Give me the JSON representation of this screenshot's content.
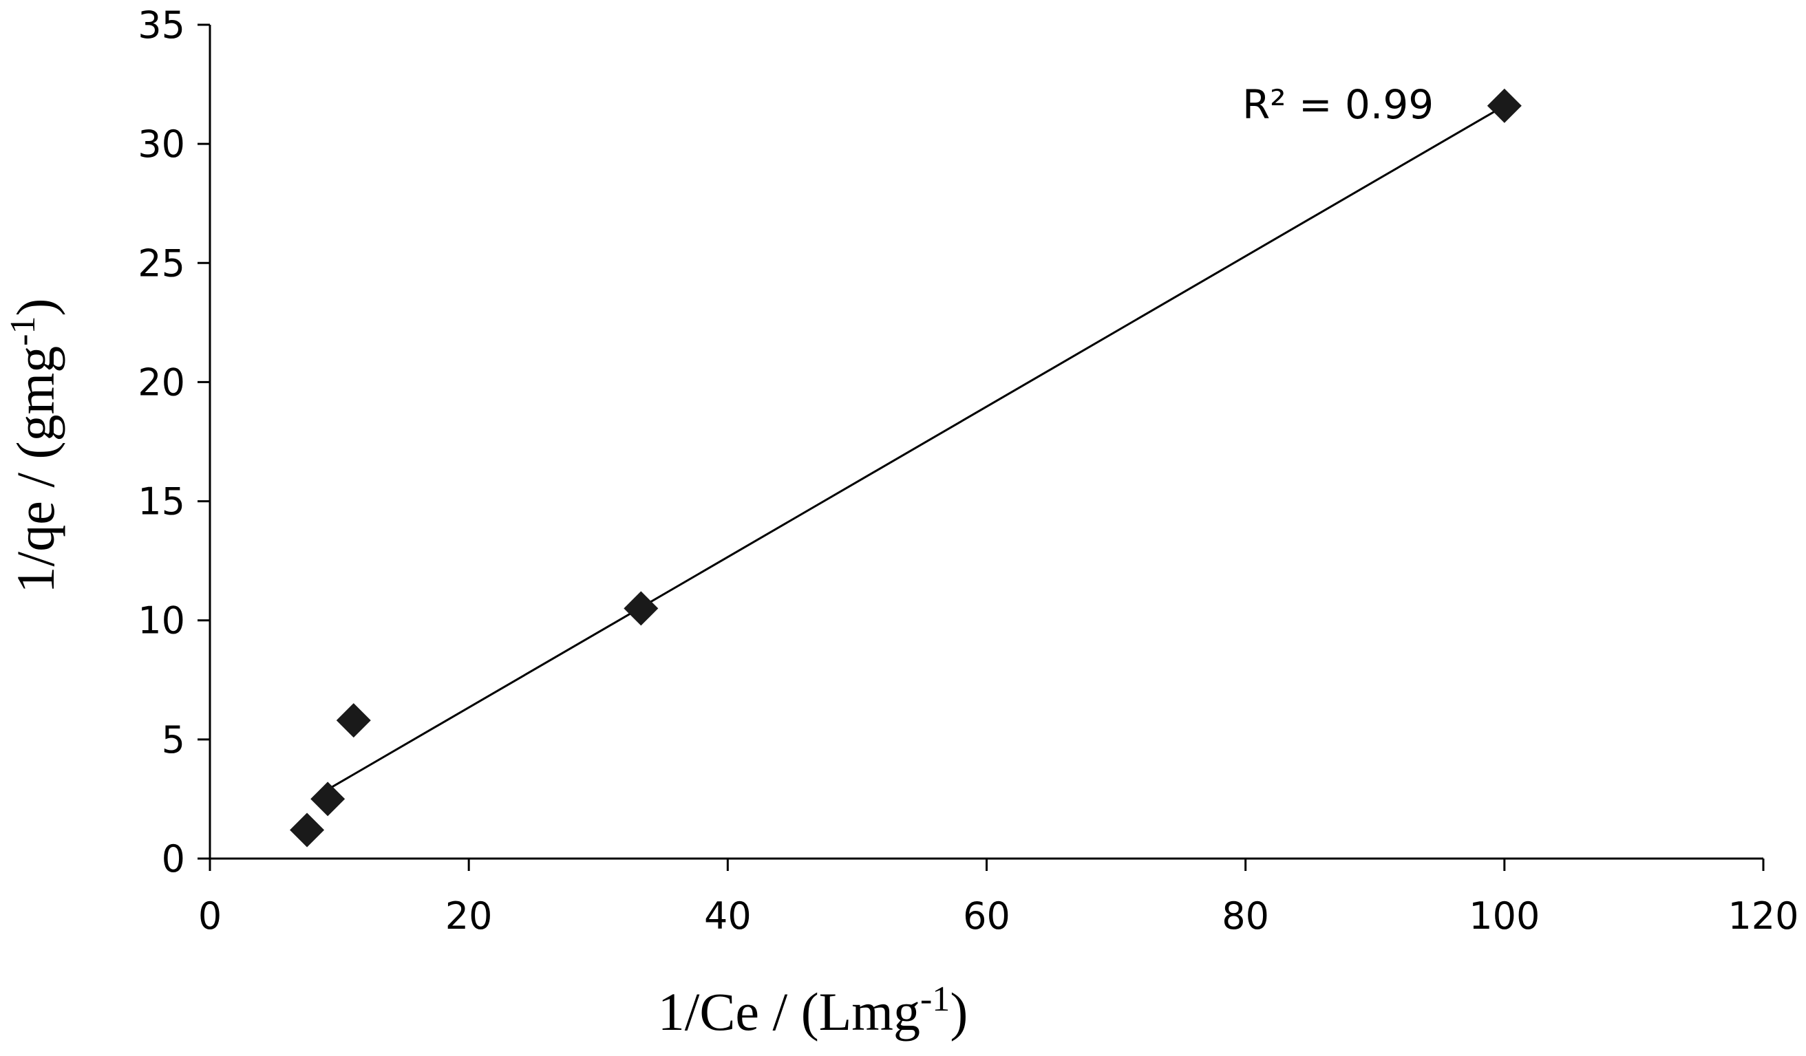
{
  "chart_data": {
    "type": "scatter",
    "title": "",
    "xlabel": {
      "main": "1/Ce / (Lmg",
      "sup": "-1",
      "close": ")"
    },
    "ylabel": {
      "main": "1/qe / (gmg",
      "sup": "-1",
      "close": ")"
    },
    "xlim": [
      0,
      120
    ],
    "ylim": [
      0,
      35
    ],
    "xticks": [
      0,
      20,
      40,
      60,
      80,
      100,
      120
    ],
    "yticks": [
      0,
      5,
      10,
      15,
      20,
      25,
      30,
      35
    ],
    "grid": false,
    "legend": "none",
    "series": [
      {
        "marker": "diamond",
        "color": "#1a1a1a",
        "points": [
          {
            "x": 7.5,
            "y": 1.2
          },
          {
            "x": 9.1,
            "y": 2.5
          },
          {
            "x": 11.1,
            "y": 5.8
          },
          {
            "x": 33.3,
            "y": 10.5
          },
          {
            "x": 100,
            "y": 31.6
          }
        ]
      }
    ],
    "trendline": {
      "type": "linear",
      "x_start": 9.1,
      "y_start": 2.9,
      "x_end": 100,
      "y_end": 31.6,
      "color": "#000000"
    },
    "annotation": {
      "text": "R² = 0.99"
    }
  }
}
